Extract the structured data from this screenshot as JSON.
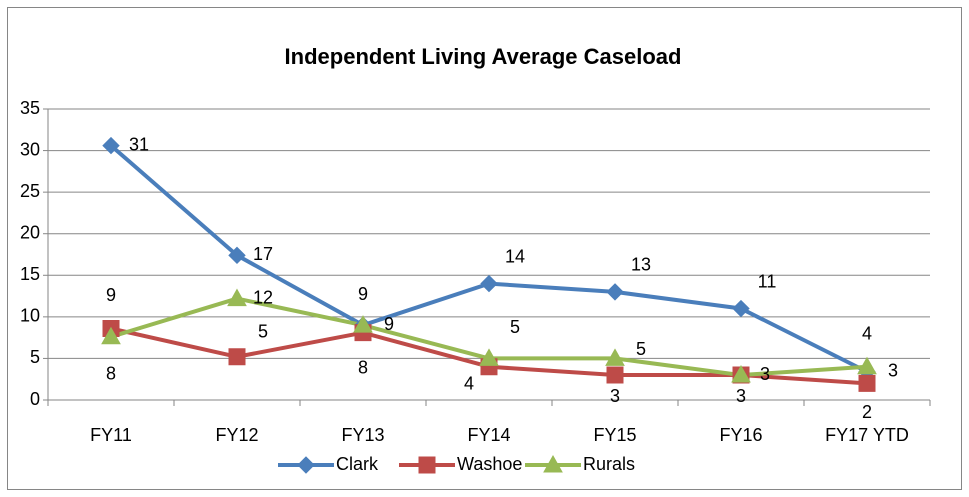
{
  "chart_data": {
    "type": "line",
    "title": "Independent Living Average Caseload",
    "categories": [
      "FY11",
      "FY12",
      "FY13",
      "FY14",
      "FY15",
      "FY16",
      "FY17 YTD"
    ],
    "series": [
      {
        "name": "Clark",
        "color": "#4a7ebb",
        "values": [
          30.6,
          17.4,
          9,
          14,
          13,
          11,
          3.4
        ],
        "value_labels": [
          "31",
          "17",
          "9",
          "14",
          "13",
          "11",
          "3"
        ]
      },
      {
        "name": "Washoe",
        "color": "#be4b48",
        "values": [
          8.6,
          5.2,
          8.1,
          4,
          3,
          3,
          2
        ],
        "value_labels": [
          "9",
          "5",
          "8",
          "4",
          "3",
          "3",
          "2"
        ]
      },
      {
        "name": "Rurals",
        "color": "#98b954",
        "values": [
          7.6,
          12.2,
          9,
          5,
          5,
          3,
          4
        ],
        "value_labels": [
          "8",
          "12",
          "9",
          "5",
          "5",
          "3",
          "4"
        ]
      }
    ],
    "ylim": [
      0,
      35
    ],
    "yticks": [
      0,
      5,
      10,
      15,
      20,
      25,
      30,
      35
    ],
    "grid": true,
    "legend": "bottom"
  }
}
